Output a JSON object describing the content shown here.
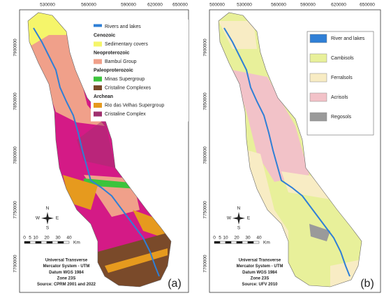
{
  "panels": [
    {
      "label": "(a)",
      "x_ticks": [
        "530000",
        "560000",
        "590000",
        "620000",
        "650000"
      ],
      "y_ticks": [
        "7900000",
        "7850000",
        "7800000",
        "7750000",
        "7700000"
      ],
      "legend": [
        {
          "text": "Rivers and lakes",
          "color": "#2f7fd6"
        },
        {
          "text": "Cenozoic"
        },
        {
          "text": "Sedimentary covers",
          "color": "#f5f56a"
        },
        {
          "text": "Neoproterozoic"
        },
        {
          "text": "Bambuí Group",
          "color": "#f0a08a"
        },
        {
          "text": "Paleoproterozoic"
        },
        {
          "text": "Minas Supergroup",
          "color": "#3cc43c"
        },
        {
          "text": "Cristaline Complexes",
          "color": "#7a4a2a"
        },
        {
          "text": "Archean"
        },
        {
          "text": "Rio das Velhas Supergroup",
          "color": "#e69a1e"
        },
        {
          "text": "Cristaline Complex",
          "color": "#a0306e"
        }
      ],
      "compass": {
        "n": "N",
        "s": "S",
        "e": "E",
        "w": "W"
      },
      "scale": {
        "ticks": [
          "0",
          "5",
          "10",
          "20",
          "30",
          "40"
        ],
        "unit": "Km"
      },
      "notes": [
        "Universal Transverse",
        "Mercator System - UTM",
        "Datum  WGS 1984",
        "Zone 23S",
        "Source: CPRM 2001 and 2022"
      ]
    },
    {
      "label": "(b)",
      "x_ticks": [
        "500000",
        "530000",
        "560000",
        "590000",
        "620000",
        "650000"
      ],
      "y_ticks": [
        "7900000",
        "7850000",
        "7800000",
        "7750000",
        "7700000"
      ],
      "legend": [
        {
          "text": "River and lakes",
          "color": "#2f7fd6"
        },
        {
          "text": "Cambisols",
          "color": "#e8f09a"
        },
        {
          "text": "Ferralsols",
          "color": "#f8ecc4"
        },
        {
          "text": "Acrisols",
          "color": "#f2c2c8"
        },
        {
          "text": "Regosols",
          "color": "#9a9a9a"
        }
      ],
      "compass": {
        "n": "N",
        "s": "S",
        "e": "E",
        "w": "W"
      },
      "scale": {
        "ticks": [
          "0",
          "5",
          "10",
          "20",
          "30",
          "40"
        ],
        "unit": "Km"
      },
      "notes": [
        "Universal Transverse",
        "Mercator System - UTM",
        "Datum  WGS 1984",
        "Zone 23S",
        "Source: UFV 2010"
      ]
    }
  ]
}
